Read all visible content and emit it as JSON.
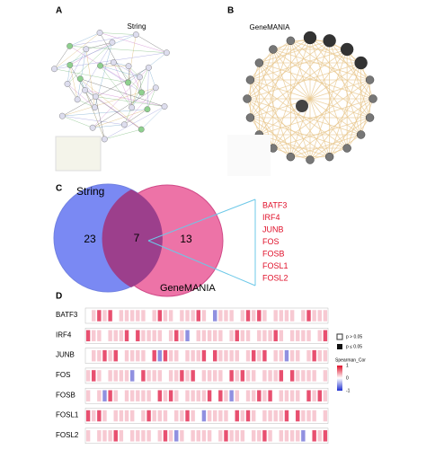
{
  "panels": [
    {
      "label": "A",
      "title": "String"
    },
    {
      "label": "B",
      "title": "GeneMANIA"
    },
    {
      "label": "C"
    },
    {
      "label": "D"
    }
  ],
  "venn": {
    "sets": [
      "String",
      "GeneMANIA"
    ],
    "counts": {
      "left": 23,
      "both": 7,
      "right": 13
    },
    "genes": [
      "BATF3",
      "IRF4",
      "JUNB",
      "FOS",
      "FOSB",
      "FOSL1",
      "FOSL2"
    ]
  },
  "heatmap": {
    "rows": [
      "BATF3",
      "IRF4",
      "JUNB",
      "FOS",
      "FOSB",
      "FOSL1",
      "FOSL2"
    ],
    "legend": {
      "nonsig": "p > 0.05",
      "sig": "p ≤ 0.05"
    },
    "scale": {
      "title": "Spearman_Cor",
      "ticks": [
        1,
        0,
        -1
      ]
    }
  }
}
